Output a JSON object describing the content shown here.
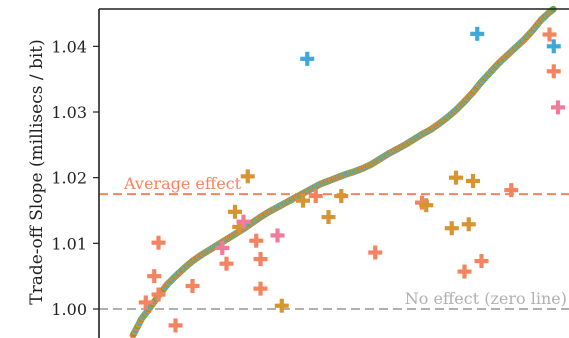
{
  "chart_data": {
    "type": "scatter",
    "title": "",
    "xlabel": "",
    "ylabel": "Trade-off Slope (millisecs / bit)",
    "xlim": [
      0,
      100
    ],
    "ylim": [
      0.9955,
      1.0455
    ],
    "y_ticks": [
      {
        "value": 1.0,
        "label": "1.00"
      },
      {
        "value": 1.01,
        "label": "1.01"
      },
      {
        "value": 1.02,
        "label": "1.02"
      },
      {
        "value": 1.03,
        "label": "1.03"
      },
      {
        "value": 1.04,
        "label": "1.04"
      }
    ],
    "grid": false,
    "reference_lines": [
      {
        "name": "average",
        "y": 1.0175,
        "label": "Average effect",
        "color": "#f4845f"
      },
      {
        "name": "zero",
        "y": 1.0,
        "label": "No effect (zero line)",
        "color": "#b0b0b0"
      }
    ],
    "curve_colors": [
      "#e8833a",
      "#62a84b",
      "#d69530",
      "#3ea9d8"
    ],
    "sorted_curve": {
      "x": [
        0,
        2,
        4,
        6,
        8,
        10,
        12,
        14,
        16,
        18,
        20,
        22,
        24,
        26,
        28,
        30,
        32,
        34,
        36,
        38,
        40,
        42,
        44,
        46,
        48,
        50,
        52,
        54,
        56,
        58,
        60,
        62,
        64,
        66,
        68,
        70,
        72,
        74,
        76,
        78,
        80,
        82,
        84,
        86,
        88,
        90,
        92,
        94,
        96,
        98,
        99
      ],
      "y": [
        0.996,
        0.9985,
        1.0002,
        1.002,
        1.0037,
        1.005,
        1.0062,
        1.0073,
        1.0082,
        1.009,
        1.0098,
        1.0106,
        1.0114,
        1.0122,
        1.0131,
        1.014,
        1.0148,
        1.0155,
        1.0162,
        1.0169,
        1.0176,
        1.0183,
        1.019,
        1.0195,
        1.02,
        1.0205,
        1.0209,
        1.0214,
        1.022,
        1.0228,
        1.0236,
        1.0243,
        1.025,
        1.0258,
        1.0266,
        1.0273,
        1.0282,
        1.0292,
        1.0303,
        1.0316,
        1.033,
        1.0346,
        1.036,
        1.0374,
        1.0386,
        1.0398,
        1.041,
        1.0424,
        1.044,
        1.0452,
        1.0457
      ]
    },
    "crosses": [
      {
        "x": 3,
        "y": 1.001,
        "color": "#f4845f"
      },
      {
        "x": 6,
        "y": 1.0022,
        "color": "#f4845f"
      },
      {
        "x": 5,
        "y": 1.005,
        "color": "#f4845f"
      },
      {
        "x": 6,
        "y": 1.0101,
        "color": "#f4845f"
      },
      {
        "x": 10,
        "y": 0.9975,
        "color": "#f4845f"
      },
      {
        "x": 14,
        "y": 1.0035,
        "color": "#f4845f"
      },
      {
        "x": 21,
        "y": 1.0093,
        "color": "#f27a9a"
      },
      {
        "x": 22,
        "y": 1.0069,
        "color": "#f4845f"
      },
      {
        "x": 24,
        "y": 1.0148,
        "color": "#d69530"
      },
      {
        "x": 25,
        "y": 1.0125,
        "color": "#d69530"
      },
      {
        "x": 26,
        "y": 1.0133,
        "color": "#f27a9a"
      },
      {
        "x": 27,
        "y": 1.0202,
        "color": "#d69530"
      },
      {
        "x": 29,
        "y": 1.0104,
        "color": "#f4845f"
      },
      {
        "x": 30,
        "y": 1.0031,
        "color": "#f4845f"
      },
      {
        "x": 30,
        "y": 1.0076,
        "color": "#f4845f"
      },
      {
        "x": 34,
        "y": 1.0112,
        "color": "#f27a9a"
      },
      {
        "x": 35,
        "y": 1.0005,
        "color": "#d69530"
      },
      {
        "x": 40,
        "y": 1.0165,
        "color": "#d69530"
      },
      {
        "x": 41,
        "y": 1.0381,
        "color": "#3ea9d8"
      },
      {
        "x": 43,
        "y": 1.0172,
        "color": "#f4845f"
      },
      {
        "x": 46,
        "y": 1.014,
        "color": "#d69530"
      },
      {
        "x": 49,
        "y": 1.0172,
        "color": "#d69530"
      },
      {
        "x": 57,
        "y": 1.0086,
        "color": "#f4845f"
      },
      {
        "x": 68,
        "y": 1.0162,
        "color": "#f4845f"
      },
      {
        "x": 69,
        "y": 1.0158,
        "color": "#d69530"
      },
      {
        "x": 75,
        "y": 1.0123,
        "color": "#d69530"
      },
      {
        "x": 76,
        "y": 1.02,
        "color": "#d69530"
      },
      {
        "x": 78,
        "y": 1.0057,
        "color": "#f4845f"
      },
      {
        "x": 79,
        "y": 1.0129,
        "color": "#d69530"
      },
      {
        "x": 80,
        "y": 1.0195,
        "color": "#d69530"
      },
      {
        "x": 81,
        "y": 1.0419,
        "color": "#3ea9d8"
      },
      {
        "x": 82,
        "y": 1.0073,
        "color": "#f4845f"
      },
      {
        "x": 89,
        "y": 1.0181,
        "color": "#f4845f"
      },
      {
        "x": 98,
        "y": 1.0418,
        "color": "#f4845f"
      },
      {
        "x": 99,
        "y": 1.04,
        "color": "#3ea9d8"
      },
      {
        "x": 99,
        "y": 1.0362,
        "color": "#f4845f"
      },
      {
        "x": 100,
        "y": 1.0307,
        "color": "#f27a9a"
      }
    ]
  }
}
